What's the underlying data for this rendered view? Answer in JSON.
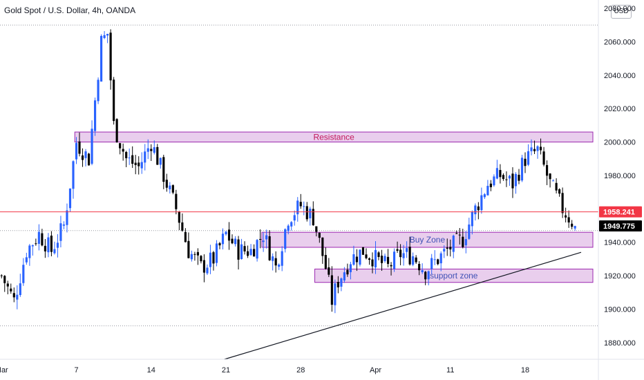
{
  "header": {
    "title": "Gold Spot / U.S. Dollar, 4h, OANDA",
    "currency": "USD"
  },
  "chart_data": {
    "type": "candlestick",
    "title": "Gold Spot / U.S. Dollar, 4h, OANDA",
    "ylim": [
      1870,
      2085
    ],
    "y_ticks": [
      1880,
      1900,
      1920,
      1940,
      1960,
      1980,
      2000,
      2020,
      2040,
      2060,
      2080
    ],
    "y_tick_labels": [
      "1880.000",
      "1900.000",
      "1920.000",
      "1940.000",
      "1960.000",
      "1980.000",
      "2000.000",
      "2020.000",
      "2040.000",
      "2060.000",
      "2080.000"
    ],
    "x_tick_labels": [
      "Mar",
      "7",
      "14",
      "21",
      "28",
      "Apr",
      "11",
      "18"
    ],
    "x_ticks_index": [
      0,
      24,
      48,
      72,
      96,
      120,
      144,
      168
    ],
    "bar_count": 192,
    "last_price": 1949.775,
    "last_price_label": "1949.775",
    "marked_price": 1958.241,
    "marked_price_label": "1958.241",
    "dotted_levels": [
      2070,
      1947,
      1890
    ],
    "key_path": [
      [
        0,
        1920
      ],
      [
        4,
        1905
      ],
      [
        8,
        1935
      ],
      [
        12,
        1945
      ],
      [
        16,
        1935
      ],
      [
        20,
        1950
      ],
      [
        24,
        2000
      ],
      [
        28,
        1990
      ],
      [
        32,
        2060
      ],
      [
        34,
        2065
      ],
      [
        36,
        2010
      ],
      [
        40,
        1990
      ],
      [
        44,
        1985
      ],
      [
        48,
        2000
      ],
      [
        52,
        1980
      ],
      [
        56,
        1960
      ],
      [
        60,
        1935
      ],
      [
        64,
        1925
      ],
      [
        68,
        1930
      ],
      [
        72,
        1945
      ],
      [
        76,
        1935
      ],
      [
        80,
        1935
      ],
      [
        84,
        1945
      ],
      [
        88,
        1925
      ],
      [
        92,
        1955
      ],
      [
        96,
        1962
      ],
      [
        100,
        1955
      ],
      [
        104,
        1925
      ],
      [
        106,
        1905
      ],
      [
        108,
        1917
      ],
      [
        112,
        1930
      ],
      [
        116,
        1935
      ],
      [
        120,
        1930
      ],
      [
        124,
        1925
      ],
      [
        128,
        1933
      ],
      [
        132,
        1932
      ],
      [
        136,
        1923
      ],
      [
        140,
        1930
      ],
      [
        144,
        1937
      ],
      [
        148,
        1942
      ],
      [
        152,
        1960
      ],
      [
        156,
        1975
      ],
      [
        160,
        1980
      ],
      [
        164,
        1975
      ],
      [
        168,
        1990
      ],
      [
        172,
        1995
      ],
      [
        176,
        1975
      ],
      [
        180,
        1960
      ],
      [
        184,
        1950
      ]
    ],
    "annotations": [
      {
        "type": "zone",
        "label": "Resistance",
        "y_range": [
          2000,
          2006
        ],
        "x_range": [
          24,
          192
        ],
        "color": "#c2185b"
      },
      {
        "type": "zone",
        "label": "Buy Zone",
        "y_range": [
          1937,
          1946
        ],
        "x_range": [
          84,
          192
        ],
        "color": "#3f51b5"
      },
      {
        "type": "zone",
        "label": "support zone",
        "y_range": [
          1916,
          1924
        ],
        "x_range": [
          101,
          192
        ],
        "color": "#3f51b5"
      },
      {
        "type": "trendline",
        "from": [
          72,
          1870
        ],
        "to": [
          192,
          1934
        ],
        "color": "#131722"
      },
      {
        "type": "level",
        "y": 1958.241,
        "color": "#f23645"
      }
    ],
    "colors": {
      "up": "#2962ff",
      "down": "#000000",
      "zone_fill": "#e1bee7",
      "zone_border": "#9c27b0",
      "marked_tag": "#f23645",
      "last_tag": "#000000"
    }
  }
}
